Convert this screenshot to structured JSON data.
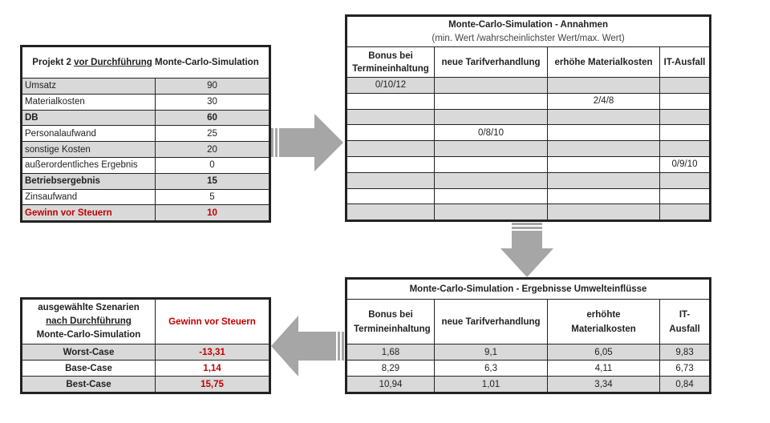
{
  "before": {
    "title_prefix": "Projekt 2 ",
    "title_underlined": "vor Durchführung",
    "title_suffix": " Monte-Carlo-Simulation",
    "rows": [
      {
        "label": "Umsatz",
        "value": "90",
        "bold": false,
        "red": false
      },
      {
        "label": "Materialkosten",
        "value": "30",
        "bold": false,
        "red": false
      },
      {
        "label": "DB",
        "value": "60",
        "bold": true,
        "red": false
      },
      {
        "label": "Personalaufwand",
        "value": "25",
        "bold": false,
        "red": false
      },
      {
        "label": "sonstige Kosten",
        "value": "20",
        "bold": false,
        "red": false
      },
      {
        "label": "außerordentliches Ergebnis",
        "value": "0",
        "bold": false,
        "red": false
      },
      {
        "label": "Betriebsergebnis",
        "value": "15",
        "bold": true,
        "red": false
      },
      {
        "label": "Zinsaufwand",
        "value": "5",
        "bold": false,
        "red": false
      },
      {
        "label": "Gewinn vor Steuern",
        "value": "10",
        "bold": true,
        "red": true
      }
    ]
  },
  "assumptions": {
    "title": "Monte-Carlo-Simulation - Annahmen",
    "subtitle": "(min. Wert /wahrscheinlichster Wert/max. Wert)",
    "headers": [
      "Bonus bei Termineinhaltung",
      "neue Tarifverhandlung",
      "erhöhe Materialkosten",
      "IT-Ausfall"
    ],
    "rows": [
      [
        "0/10/12",
        "",
        "",
        ""
      ],
      [
        "",
        "",
        "2/4/8",
        ""
      ],
      [
        "",
        "",
        "",
        ""
      ],
      [
        "",
        "0/8/10",
        "",
        ""
      ],
      [
        "",
        "",
        "",
        ""
      ],
      [
        "",
        "",
        "",
        "0/9/10"
      ],
      [
        "",
        "",
        "",
        ""
      ],
      [
        "",
        "",
        "",
        ""
      ],
      [
        "",
        "",
        "",
        ""
      ]
    ]
  },
  "results": {
    "title": "Monte-Carlo-Simulation - Ergebnisse Umwelteinflüsse",
    "headers": [
      "Bonus bei Termineinhaltung",
      "neue Tarifverhandlung",
      "erhöhte Materialkosten",
      "IT-Ausfall"
    ],
    "rows": [
      [
        "1,68",
        "9,1",
        "6,05",
        "9,83"
      ],
      [
        "8,29",
        "6,3",
        "4,11",
        "6,73"
      ],
      [
        "10,94",
        "1,01",
        "3,34",
        "0,84"
      ]
    ]
  },
  "scenarios": {
    "header_line1": "ausgewählte Szenarien",
    "header_line2": "nach Durchführung",
    "header_line3": "Monte-Carlo-Simulation",
    "value_header": "Gewinn vor Steuern",
    "rows": [
      {
        "label": "Worst-Case",
        "value": "-13,31"
      },
      {
        "label": "Base-Case",
        "value": "1,14"
      },
      {
        "label": "Best-Case",
        "value": "15,75"
      }
    ]
  },
  "colors": {
    "accent_red": "#c00000",
    "shade": "#d9d9d9",
    "arrow": "#a6a6a6"
  }
}
